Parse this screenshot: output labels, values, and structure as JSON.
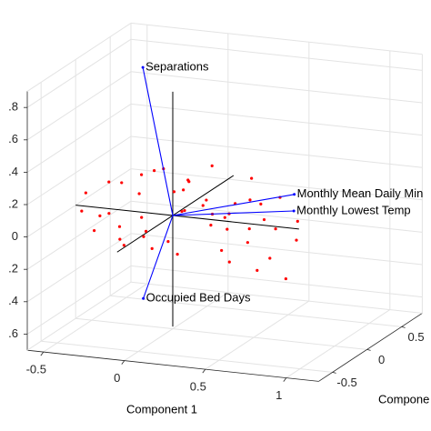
{
  "chart_data": {
    "type": "biplot3d",
    "xlabel": "Component 1",
    "ylabel": "Compone",
    "xlim": [
      -0.6,
      1.2
    ],
    "ylim": [
      -0.7,
      0.8
    ],
    "zlim": [
      -0.7,
      0.9
    ],
    "xticks": [
      -0.5,
      0,
      0.5,
      1
    ],
    "yticks": [
      -0.5,
      0,
      0.5
    ],
    "zticks": [
      {
        "value": -0.6,
        "label": ".6"
      },
      {
        "value": -0.4,
        "label": ".4"
      },
      {
        "value": -0.2,
        "label": ".2"
      },
      0,
      {
        "value": 0.2,
        "label": ".2"
      },
      {
        "value": 0.4,
        "label": ".4"
      },
      {
        "value": 0.6,
        "label": ".6"
      },
      {
        "value": 0.8,
        "label": ".8"
      }
    ],
    "grid": true,
    "vector_color": "#0000ff",
    "point_color": "#ff0000",
    "vectors": {
      "names": [
        "Separations",
        "Occupied Bed Days",
        "Monthly Mean Daily Min",
        "Monthly Lowest Temp"
      ],
      "x": [
        -0.27,
        -0.31,
        0.58,
        0.62
      ],
      "y": [
        0.2,
        0.3,
        0.4,
        0.3
      ],
      "z": [
        0.83,
        -0.63,
        0.08,
        0.01
      ]
    },
    "points": {
      "x": [
        -0.58,
        -0.52,
        -0.48,
        -0.45,
        -0.4,
        -0.38,
        -0.35,
        -0.33,
        -0.3,
        -0.28,
        -0.25,
        -0.22,
        -0.2,
        -0.18,
        -0.15,
        -0.12,
        -0.1,
        -0.08,
        -0.05,
        -0.02,
        0.0,
        0.03,
        0.05,
        0.08,
        0.1,
        0.12,
        0.15,
        0.18,
        0.2,
        0.22,
        0.25,
        0.28,
        0.3,
        0.33,
        0.35,
        0.38,
        0.4,
        0.42,
        0.45,
        0.48,
        0.5,
        0.52,
        0.55,
        0.58,
        0.6,
        0.62,
        0.65,
        0.7,
        0.72,
        0.75
      ],
      "y": [
        0.1,
        -0.1,
        0.2,
        0.0,
        -0.2,
        0.15,
        0.05,
        -0.15,
        0.25,
        -0.05,
        0.1,
        -0.25,
        0.2,
        0.0,
        -0.1,
        0.3,
        0.1,
        -0.2,
        0.05,
        0.2,
        -0.3,
        0.15,
        -0.05,
        0.25,
        0.0,
        -0.15,
        0.2,
        -0.25,
        0.1,
        0.3,
        -0.1,
        0.05,
        0.2,
        -0.2,
        0.0,
        0.25,
        -0.15,
        0.1,
        -0.3,
        0.15,
        0.05,
        -0.1,
        0.2,
        -0.25,
        0.0,
        0.1,
        -0.2,
        0.15,
        -0.05,
        0.05
      ],
      "z": [
        0.05,
        0.0,
        0.1,
        -0.05,
        -0.08,
        0.12,
        -0.12,
        0.02,
        0.15,
        -0.2,
        0.08,
        -0.1,
        0.2,
        -0.15,
        0.0,
        0.05,
        0.25,
        -0.05,
        -0.18,
        0.1,
        -0.12,
        0.18,
        -0.22,
        0.0,
        0.22,
        0.08,
        -0.1,
        0.12,
        0.3,
        -0.05,
        0.15,
        -0.2,
        0.05,
        0.1,
        -0.25,
        0.2,
        0.0,
        -0.15,
        0.12,
        0.08,
        -0.3,
        0.18,
        -0.08,
        0.05,
        -0.2,
        0.15,
        0.1,
        -0.12,
        -0.3,
        0.03
      ]
    }
  }
}
